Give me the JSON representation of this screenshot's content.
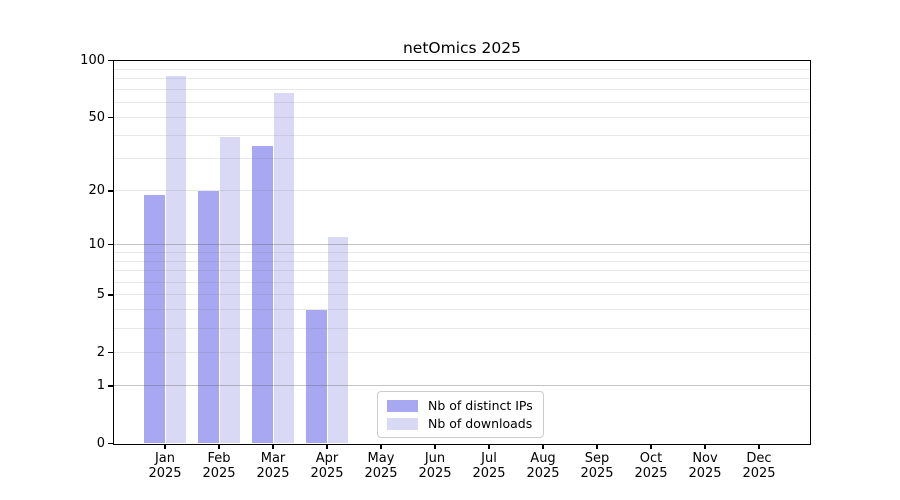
{
  "chart_data": {
    "type": "bar",
    "title": "netOmics 2025",
    "categories": [
      "Jan",
      "Feb",
      "Mar",
      "Apr",
      "May",
      "Jun",
      "Jul",
      "Aug",
      "Sep",
      "Oct",
      "Nov",
      "Dec"
    ],
    "category_year": "2025",
    "series": [
      {
        "name": "Nb of distinct IPs",
        "color": "#a8a8f2",
        "values": [
          19,
          20,
          35,
          4,
          null,
          null,
          null,
          null,
          null,
          null,
          null,
          null
        ]
      },
      {
        "name": "Nb of downloads",
        "color": "#d9d9f6",
        "values": [
          83,
          39,
          67,
          11,
          null,
          null,
          null,
          null,
          null,
          null,
          null,
          null
        ]
      }
    ],
    "y_axis": {
      "scale": "log1p",
      "range": [
        0,
        100
      ],
      "tick_labels": [
        0,
        1,
        2,
        5,
        10,
        20,
        50,
        100
      ],
      "major_gridlines": [
        1,
        10,
        100
      ],
      "minor_gridlines": [
        2,
        3,
        4,
        5,
        6,
        7,
        8,
        9,
        20,
        30,
        40,
        50,
        60,
        70,
        80,
        90
      ]
    },
    "legend": {
      "items": [
        "Nb of distinct IPs",
        "Nb of downloads"
      ],
      "position": "inside-bottom-center"
    },
    "grid": true,
    "xlabel": "",
    "ylabel": ""
  },
  "colors": {
    "background": "#ffffff",
    "spine": "#000000",
    "text": "#000000",
    "major_grid": "#c8c8c8",
    "minor_grid": "#ebebeb",
    "legend_border": "#cccccc"
  }
}
